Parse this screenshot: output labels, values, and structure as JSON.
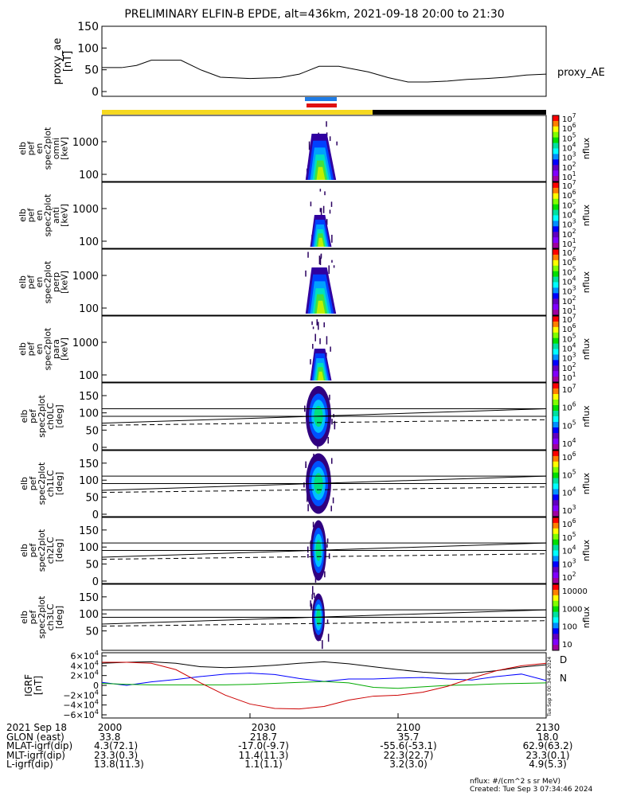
{
  "title": "PRELIMINARY ELFIN-B EPDE, alt=436km, 2021-09-18 20:00 to 21:30",
  "colors": {
    "sunlit_bar": "#f5d820",
    "shadow_bar": "#000000",
    "ae_line": "#000000",
    "bx": "#000000",
    "by": "#0000ff",
    "bz": "#00aa00",
    "bmag": "#cc0000",
    "marker_blue": "#1e7be6",
    "marker_red": "#e01010"
  },
  "panel_proxy": {
    "ylabel": [
      "proxy_ae",
      "[nT]"
    ],
    "right_label": "proxy_AE",
    "yticks": [
      "150",
      "100",
      "50",
      "0"
    ]
  },
  "energy_panels": [
    {
      "ylabel": [
        "elb",
        "pef",
        "en",
        "spec2plot",
        "omni",
        "[keV]"
      ],
      "yticks": [
        "1000",
        "100"
      ],
      "cbar_ticks": [
        "10^7",
        "10^6",
        "10^5",
        "10^4",
        "10^3",
        "10^2",
        "10^1"
      ],
      "cbar_label": "nflux"
    },
    {
      "ylabel": [
        "elb",
        "pef",
        "en",
        "spec2plot",
        "anti",
        "[keV]"
      ],
      "yticks": [
        "1000",
        "100"
      ],
      "cbar_ticks": [
        "10^7",
        "10^6",
        "10^5",
        "10^4",
        "10^3",
        "10^2",
        "10^1"
      ],
      "cbar_label": "nflux"
    },
    {
      "ylabel": [
        "elb",
        "pef",
        "en",
        "spec2plot",
        "perp",
        "[keV]"
      ],
      "yticks": [
        "1000",
        "100"
      ],
      "cbar_ticks": [
        "10^7",
        "10^6",
        "10^5",
        "10^4",
        "10^3",
        "10^2",
        "10^1"
      ],
      "cbar_label": "nflux"
    },
    {
      "ylabel": [
        "elb",
        "pef",
        "en",
        "spec2plot",
        "para",
        "[keV]"
      ],
      "yticks": [
        "1000",
        "100"
      ],
      "cbar_ticks": [
        "10^7",
        "10^6",
        "10^5",
        "10^4",
        "10^3",
        "10^2",
        "10^1"
      ],
      "cbar_label": "nflux"
    }
  ],
  "pa_panels": [
    {
      "ylabel": [
        "elb",
        "pef",
        "spec2plot",
        "ch0LC",
        "[deg]"
      ],
      "yticks": [
        "150",
        "100",
        "50",
        "0"
      ],
      "cbar_ticks": [
        "10^7",
        "10^6",
        "10^5",
        "10^4"
      ],
      "cbar_label": "nflux"
    },
    {
      "ylabel": [
        "elb",
        "pef",
        "spec2plot",
        "ch1LC",
        "[deg]"
      ],
      "yticks": [
        "150",
        "100",
        "50",
        "0"
      ],
      "cbar_ticks": [
        "10^6",
        "10^5",
        "10^4",
        "10^3"
      ],
      "cbar_label": "nflux"
    },
    {
      "ylabel": [
        "elb",
        "pef",
        "spec2plot",
        "ch2LC",
        "[deg]"
      ],
      "yticks": [
        "150",
        "100",
        "50",
        "0"
      ],
      "cbar_ticks": [
        "10^6",
        "10^5",
        "10^4",
        "10^3",
        "10^2"
      ],
      "cbar_label": "nflux"
    },
    {
      "ylabel": [
        "elb",
        "pef",
        "spec2plot",
        "ch3LC",
        "[deg]"
      ],
      "yticks": [
        "150",
        "100",
        "50"
      ],
      "cbar_ticks": [
        "10000",
        "1000",
        "100",
        "10"
      ],
      "cbar_label": "nflux"
    }
  ],
  "panel_field": {
    "ylabel": [
      "IGRF",
      "[nT]"
    ],
    "yticks": [
      "6×10^4",
      "4×10^4",
      "2×10^4",
      "0",
      "−2×10^4",
      "−4×10^4",
      "−6×10^4"
    ],
    "legend": [
      "D",
      "N"
    ],
    "side_note": "Tue Sep  3 00:34:46 2024"
  },
  "footer": {
    "rows": [
      [
        "2021 Sep 18",
        "2000",
        "2030",
        "2100",
        "2130"
      ],
      [
        "GLON (east)",
        "33.8",
        "218.7",
        "35.7",
        "18.0"
      ],
      [
        "MLAT-igrf(dip)",
        "4.3(72.1)",
        "-17.0(-9.7)",
        "-55.6(-53.1)",
        "62.9(63.2)"
      ],
      [
        "MLT-igrf(dip)",
        "23.3(0.3)",
        "11.4(11.3)",
        "22.3(22.7)",
        "23.3(0.1)"
      ],
      [
        "L-igrf(dip)",
        "13.8(11.3)",
        "1.1(1.1)",
        "3.2(3.0)",
        "4.9(5.3)"
      ]
    ],
    "units": "nflux: #/(cm^2 s sr MeV)",
    "created": "Created: Tue Sep  3 07:34:46 2024"
  },
  "chart_data": [
    {
      "type": "line",
      "title": "PRELIMINARY ELFIN-B EPDE, alt=436km, 2021-09-18 20:00 to 21:30",
      "xlabel": "",
      "ylabel": "proxy_ae [nT]",
      "xlim": [
        0,
        90
      ],
      "ylim": [
        0,
        150
      ],
      "series": [
        {
          "name": "proxy_AE",
          "x": [
            0,
            4,
            7,
            10,
            16,
            20,
            24,
            30,
            36,
            40,
            44,
            48,
            54,
            58,
            62,
            66,
            70,
            74,
            78,
            82,
            86,
            90
          ],
          "y": [
            55,
            55,
            60,
            72,
            72,
            50,
            33,
            30,
            32,
            40,
            58,
            58,
            45,
            32,
            22,
            22,
            24,
            28,
            30,
            33,
            38,
            40
          ]
        }
      ]
    },
    {
      "type": "line",
      "ylabel": "IGRF [nT]",
      "xlim": [
        0,
        90
      ],
      "ylim": [
        -60000,
        60000
      ],
      "series": [
        {
          "name": "D",
          "x": [
            0,
            5,
            10,
            15,
            20,
            25,
            30,
            35,
            40,
            45,
            50,
            55,
            60,
            65,
            70,
            75,
            80,
            85,
            90
          ],
          "y": [
            45000,
            47000,
            48000,
            45000,
            38000,
            36000,
            38000,
            41000,
            45000,
            48000,
            44000,
            38000,
            32000,
            27000,
            24000,
            25000,
            30000,
            37000,
            42000
          ]
        },
        {
          "name": "N",
          "x": [
            0,
            5,
            10,
            15,
            20,
            25,
            30,
            35,
            40,
            45,
            50,
            55,
            60,
            65,
            70,
            75,
            80,
            85,
            90
          ],
          "y": [
            6000,
            0,
            7000,
            12000,
            18000,
            23000,
            25000,
            22000,
            14000,
            8000,
            13000,
            13000,
            15000,
            16000,
            13000,
            11000,
            18000,
            23000,
            10000
          ]
        },
        {
          "name": "",
          "x": [
            0,
            5,
            10,
            15,
            20,
            25,
            30,
            35,
            40,
            45,
            50,
            55,
            60,
            65,
            70,
            75,
            80,
            85,
            90
          ],
          "y": [
            4000,
            2000,
            1000,
            1000,
            1000,
            1000,
            2000,
            4000,
            6000,
            8000,
            5000,
            -4000,
            -6000,
            -3000,
            0,
            1000,
            3000,
            4000,
            5000
          ]
        },
        {
          "name": "",
          "x": [
            0,
            5,
            10,
            15,
            20,
            25,
            30,
            35,
            40,
            45,
            50,
            55,
            60,
            65,
            70,
            75,
            80,
            85,
            90
          ],
          "y": [
            47000,
            47000,
            45000,
            32000,
            5000,
            -20000,
            -38000,
            -47000,
            -48000,
            -43000,
            -30000,
            -22000,
            -20000,
            -14000,
            -2000,
            15000,
            30000,
            40000,
            45000
          ]
        }
      ]
    }
  ]
}
